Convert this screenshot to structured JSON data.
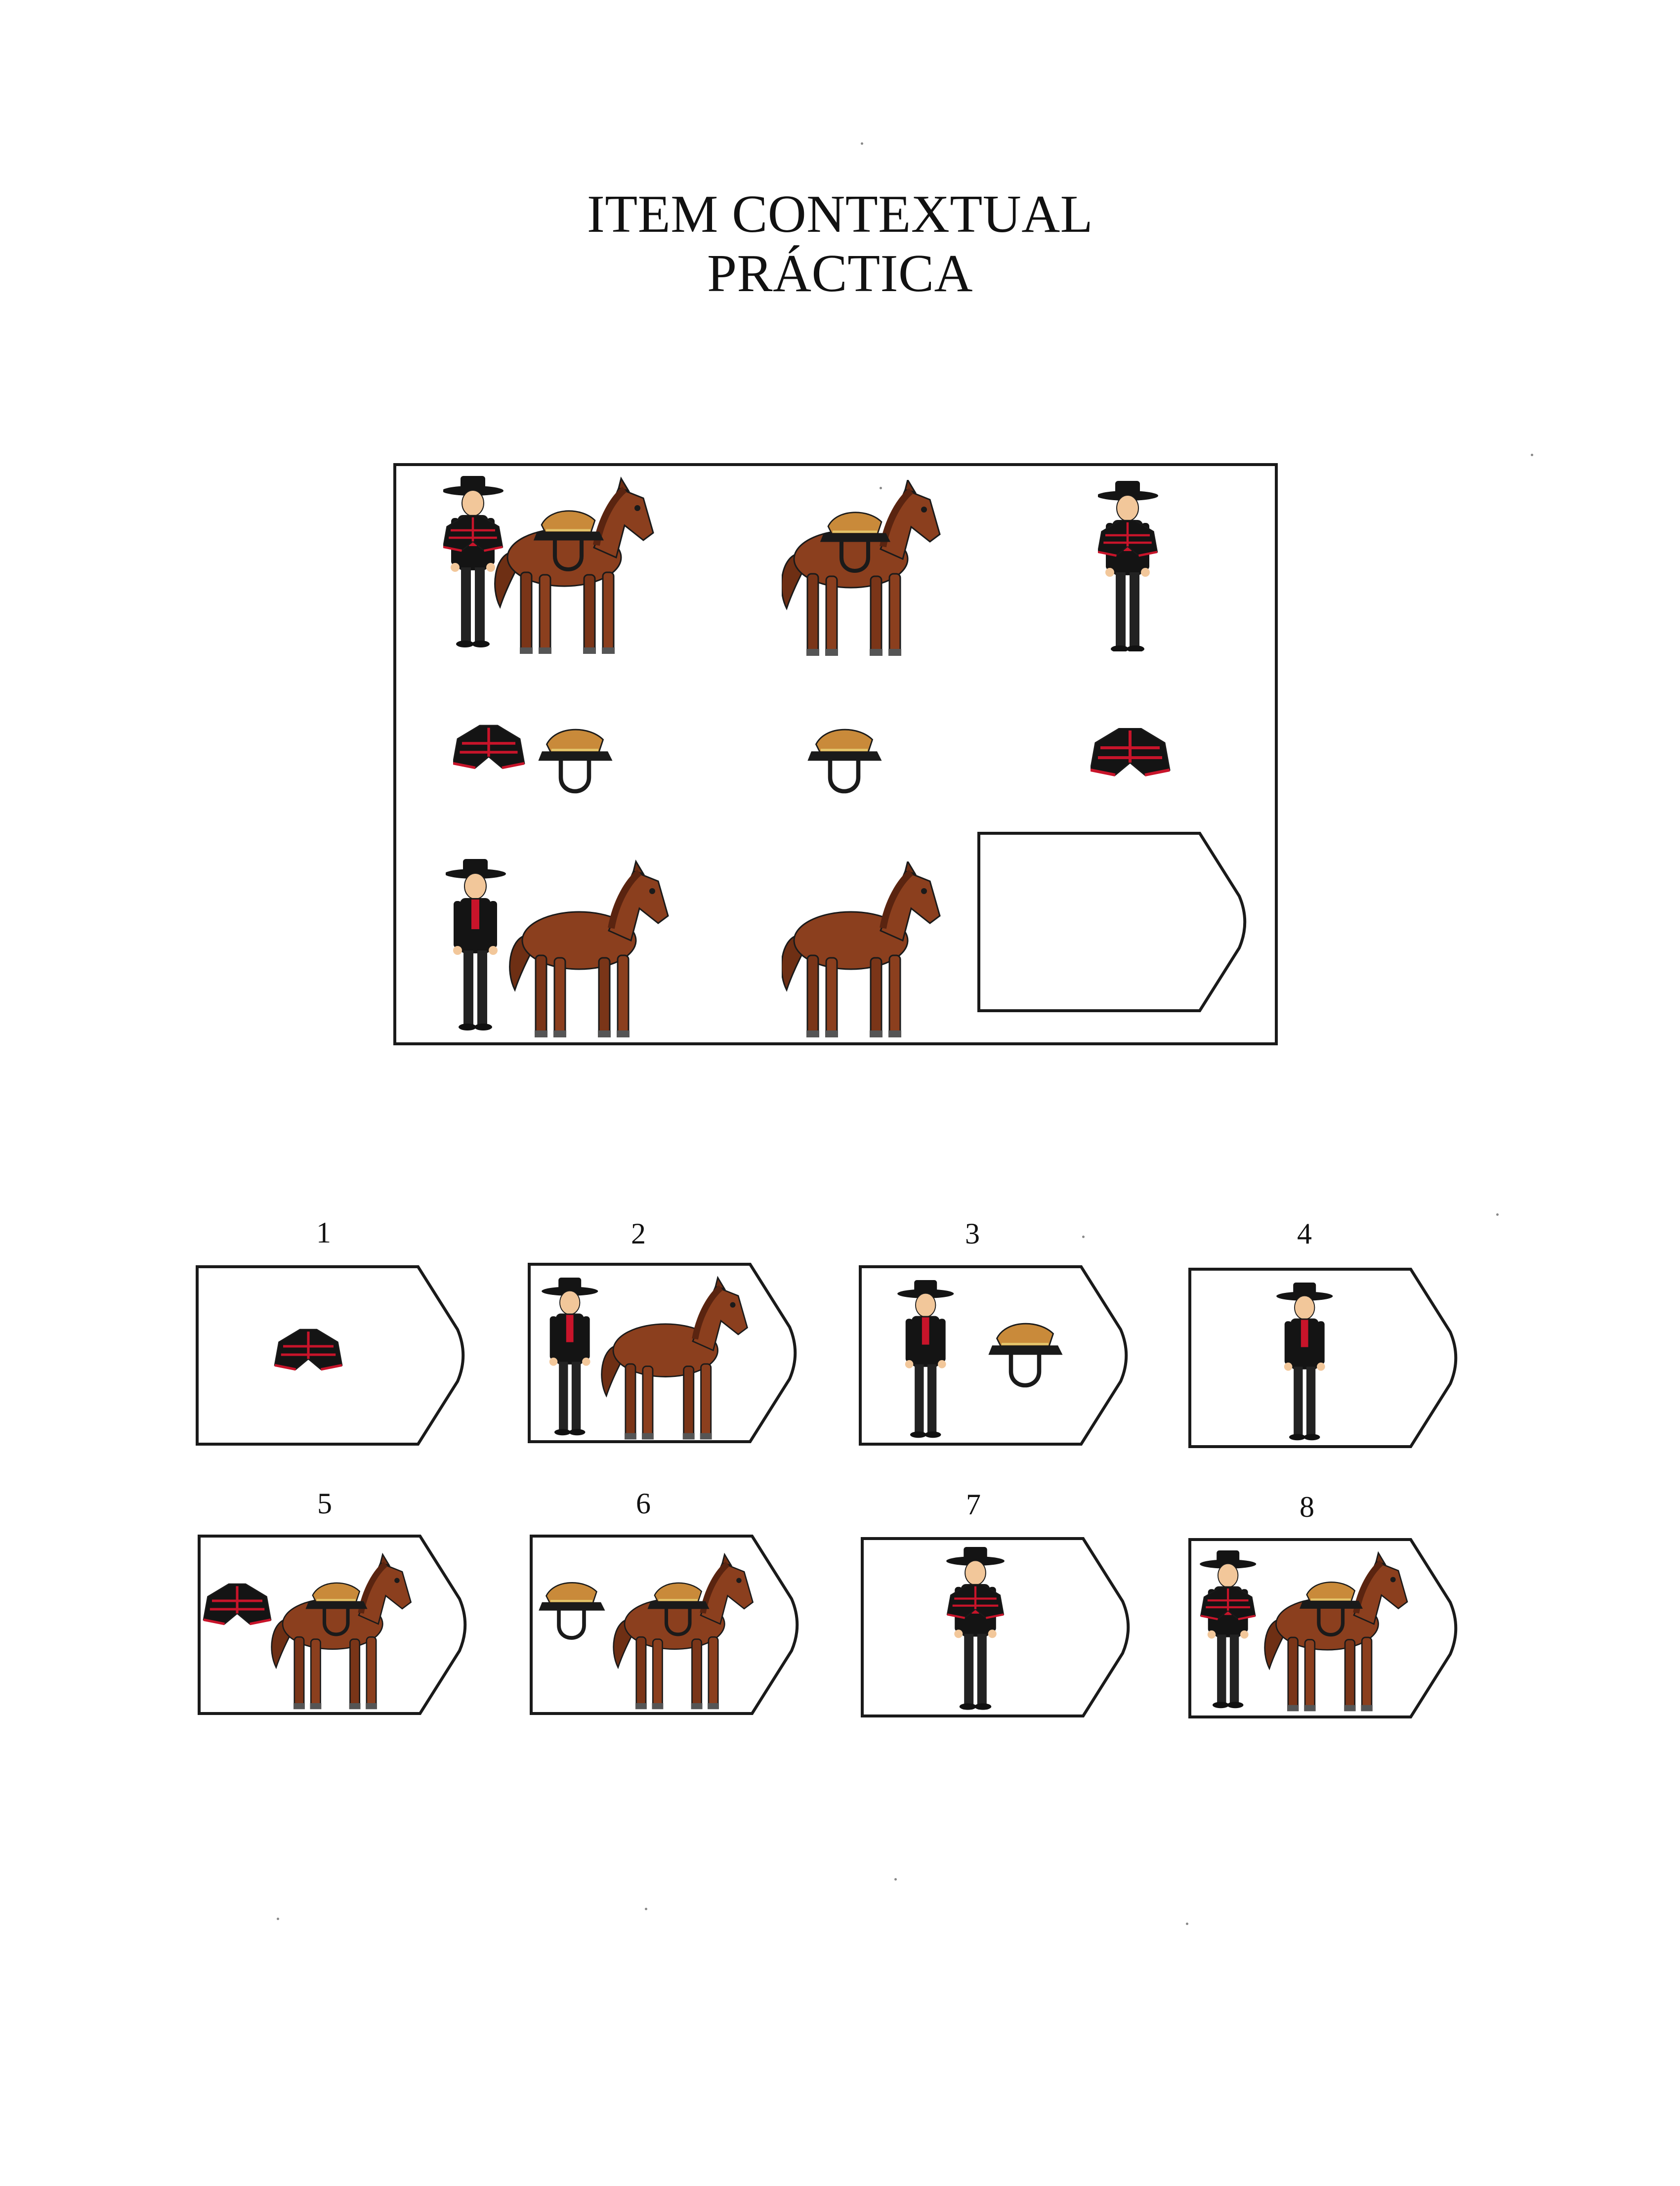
{
  "title": {
    "line1": "ITEM CONTEXTUAL",
    "line2": "PRÁCTICA"
  },
  "icons": [
    "huaso-icon",
    "horse-icon",
    "saddle-icon",
    "poncho-icon"
  ],
  "colors": {
    "horse": "#8b3f1e",
    "saddle": "#c98a3a",
    "poncho_black": "#141414",
    "poncho_red": "#c8142a",
    "outline": "#1a1a1a"
  },
  "matrix": {
    "rows": [
      [
        "huaso with poncho and saddled horse",
        "saddled horse",
        "huaso with poncho"
      ],
      [
        "poncho and saddle",
        "saddle",
        "poncho"
      ],
      [
        "huaso and horse",
        "horse",
        "missing piece"
      ]
    ]
  },
  "options": [
    {
      "number": "1"
    },
    {
      "number": "2"
    },
    {
      "number": "3"
    },
    {
      "number": "4"
    },
    {
      "number": "5"
    },
    {
      "number": "6"
    },
    {
      "number": "7"
    },
    {
      "number": "8"
    }
  ]
}
